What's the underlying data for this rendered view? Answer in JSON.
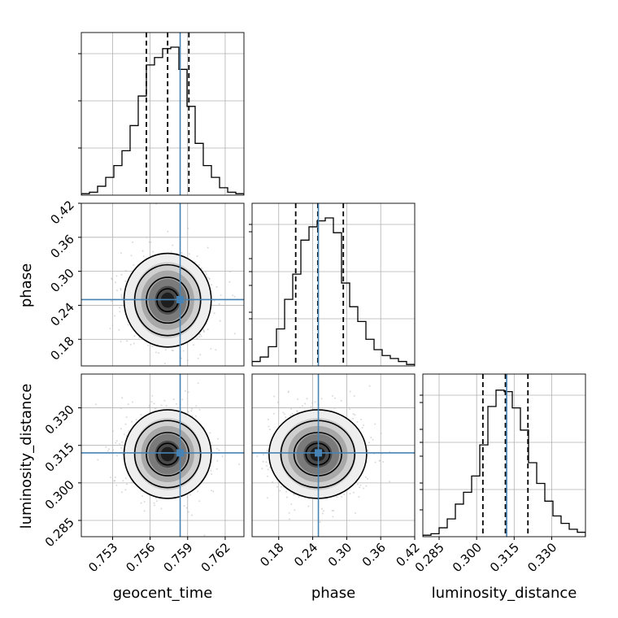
{
  "chart_data": {
    "type": "corner",
    "parameters": [
      "geocent_time",
      "phase",
      "luminosity_distance"
    ],
    "truth": {
      "geocent_time": 0.7584,
      "phase": 0.25,
      "luminosity_distance": 0.312
    },
    "quantiles": {
      "geocent_time": [
        0.7557,
        0.7574,
        0.7591
      ],
      "phase": [
        0.21,
        0.249,
        0.294
      ],
      "luminosity_distance": [
        0.3025,
        0.3115,
        0.3205
      ]
    },
    "ranges": {
      "geocent_time": [
        0.7505,
        0.7635
      ],
      "phase": [
        0.133,
        0.42
      ],
      "luminosity_distance": [
        0.2785,
        0.3435
      ]
    },
    "ticks": {
      "geocent_time": {
        "values": [
          0.753,
          0.756,
          0.759,
          0.762
        ],
        "labels": [
          "0.753",
          "0.756",
          "0.759",
          "0.762"
        ]
      },
      "phase": {
        "values": [
          0.18,
          0.24,
          0.3,
          0.36,
          0.42
        ],
        "labels": [
          "0.18",
          "0.24",
          "0.30",
          "0.36",
          "0.42"
        ]
      },
      "luminosity_distance": {
        "values": [
          0.285,
          0.3,
          0.315,
          0.33
        ],
        "labels": [
          "0.285",
          "0.300",
          "0.315",
          "0.330"
        ]
      }
    },
    "histograms": {
      "geocent_time": [
        0.01,
        0.02,
        0.06,
        0.12,
        0.2,
        0.3,
        0.47,
        0.67,
        0.88,
        0.93,
        0.99,
        1.0,
        0.85,
        0.6,
        0.35,
        0.2,
        0.12,
        0.05,
        0.02,
        0.01
      ],
      "phase": [
        0.03,
        0.06,
        0.13,
        0.25,
        0.45,
        0.62,
        0.85,
        0.94,
        0.98,
        1.0,
        0.9,
        0.56,
        0.4,
        0.3,
        0.18,
        0.11,
        0.07,
        0.05,
        0.03,
        0.01
      ],
      "luminosity_distance": [
        0.01,
        0.02,
        0.06,
        0.12,
        0.22,
        0.3,
        0.41,
        0.62,
        0.88,
        0.99,
        0.98,
        0.87,
        0.72,
        0.5,
        0.36,
        0.24,
        0.14,
        0.09,
        0.05,
        0.03
      ]
    },
    "grid": true,
    "colors": {
      "truth": "#4682b4",
      "hist": "#000000",
      "quantile": "#000000",
      "points": "#bbbbbb"
    }
  }
}
